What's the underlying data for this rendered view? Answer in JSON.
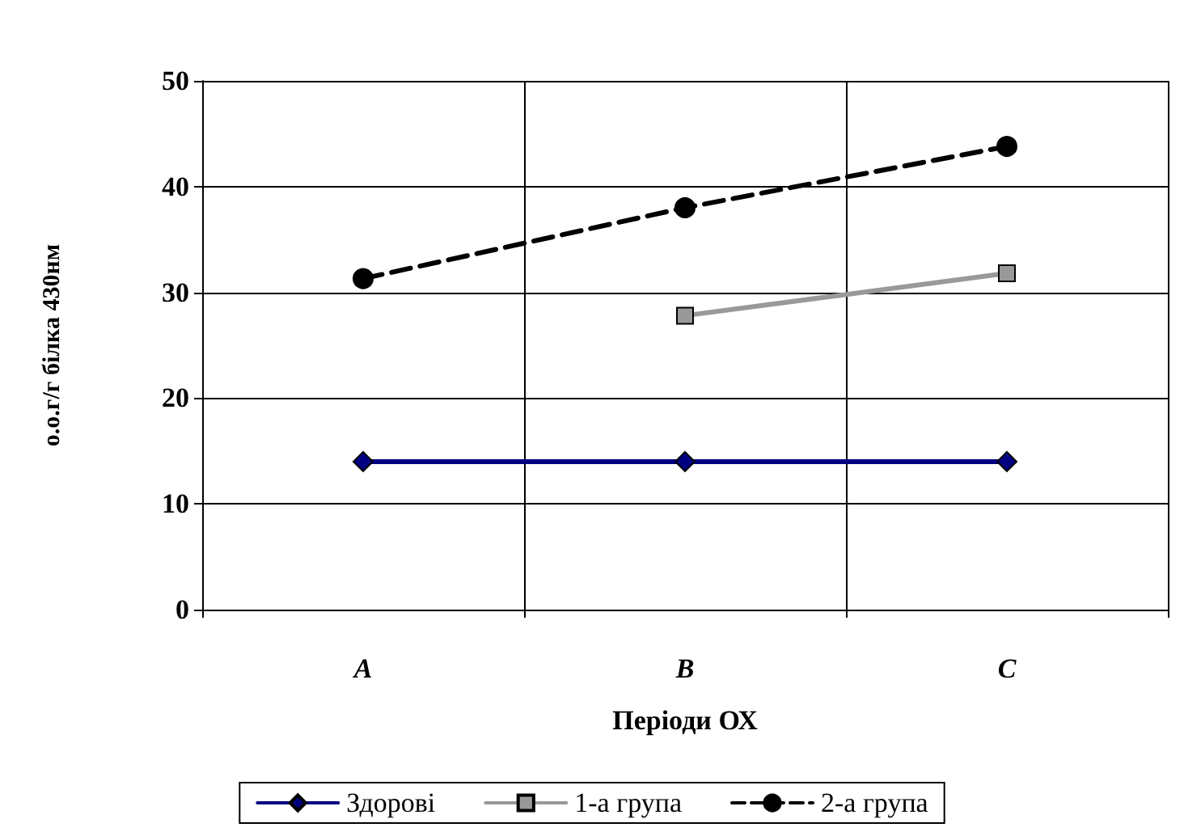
{
  "chart_data": {
    "type": "line",
    "xlabel": "Періоди ОХ",
    "ylabel": "о.о.г/г білка 430нм",
    "categories": [
      "A",
      "B",
      "C"
    ],
    "series": [
      {
        "name": "Здорові",
        "color": "#000080",
        "values": [
          14,
          14,
          14
        ],
        "marker": "diamond",
        "line_style": "solid"
      },
      {
        "name": "1-а група",
        "color": "#999999",
        "values": [
          null,
          27.8,
          31.8
        ],
        "marker": "square",
        "line_style": "solid"
      },
      {
        "name": "2-а група",
        "color": "#000000",
        "values": [
          31.3,
          38,
          43.8
        ],
        "marker": "circle",
        "line_style": "dashed"
      }
    ],
    "ylim": [
      0,
      50
    ],
    "yticks": [
      0,
      10,
      20,
      30,
      40,
      50
    ],
    "grid": true,
    "legend": "bottom"
  }
}
